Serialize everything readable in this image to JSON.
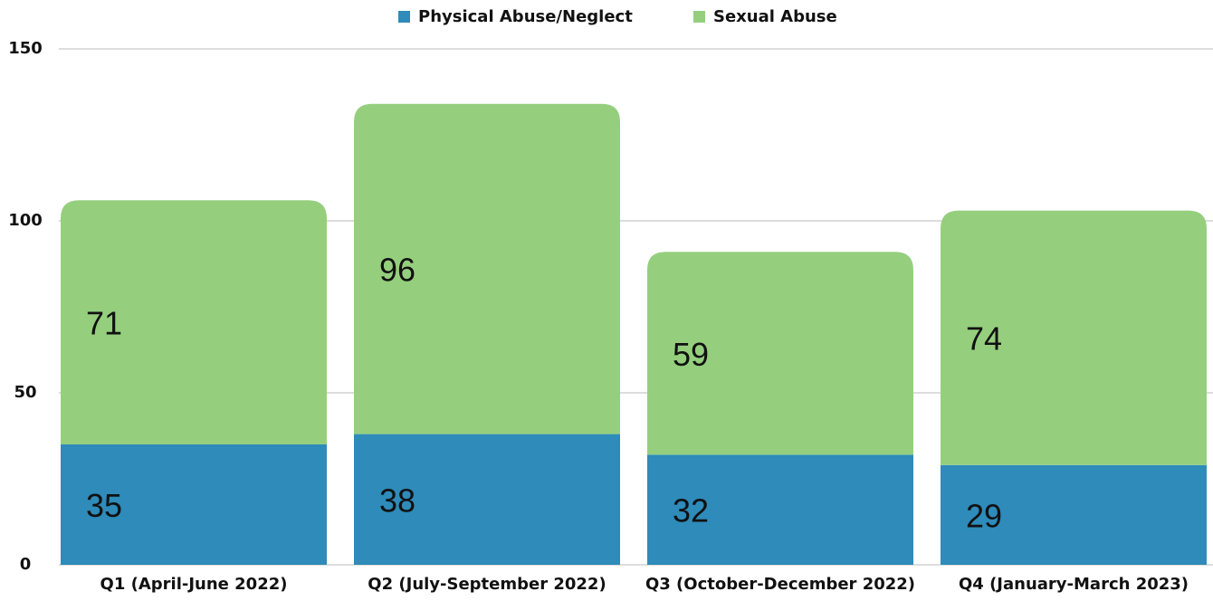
{
  "chart_data": {
    "type": "stacked_bar",
    "categories": [
      "Q1 (April-June 2022)",
      "Q2 (July-September 2022)",
      "Q3 (October-December 2022)",
      "Q4 (January-March 2023)"
    ],
    "series": [
      {
        "name": "Physical Abuse/Neglect",
        "color": "#2e8bba",
        "values": [
          35,
          38,
          32,
          29
        ]
      },
      {
        "name": "Sexual Abuse",
        "color": "#95cf7e",
        "values": [
          71,
          96,
          59,
          74
        ]
      }
    ],
    "ylim": [
      0,
      150
    ],
    "yticks": [
      0,
      50,
      100,
      150
    ],
    "grid": true,
    "legend": "top"
  }
}
